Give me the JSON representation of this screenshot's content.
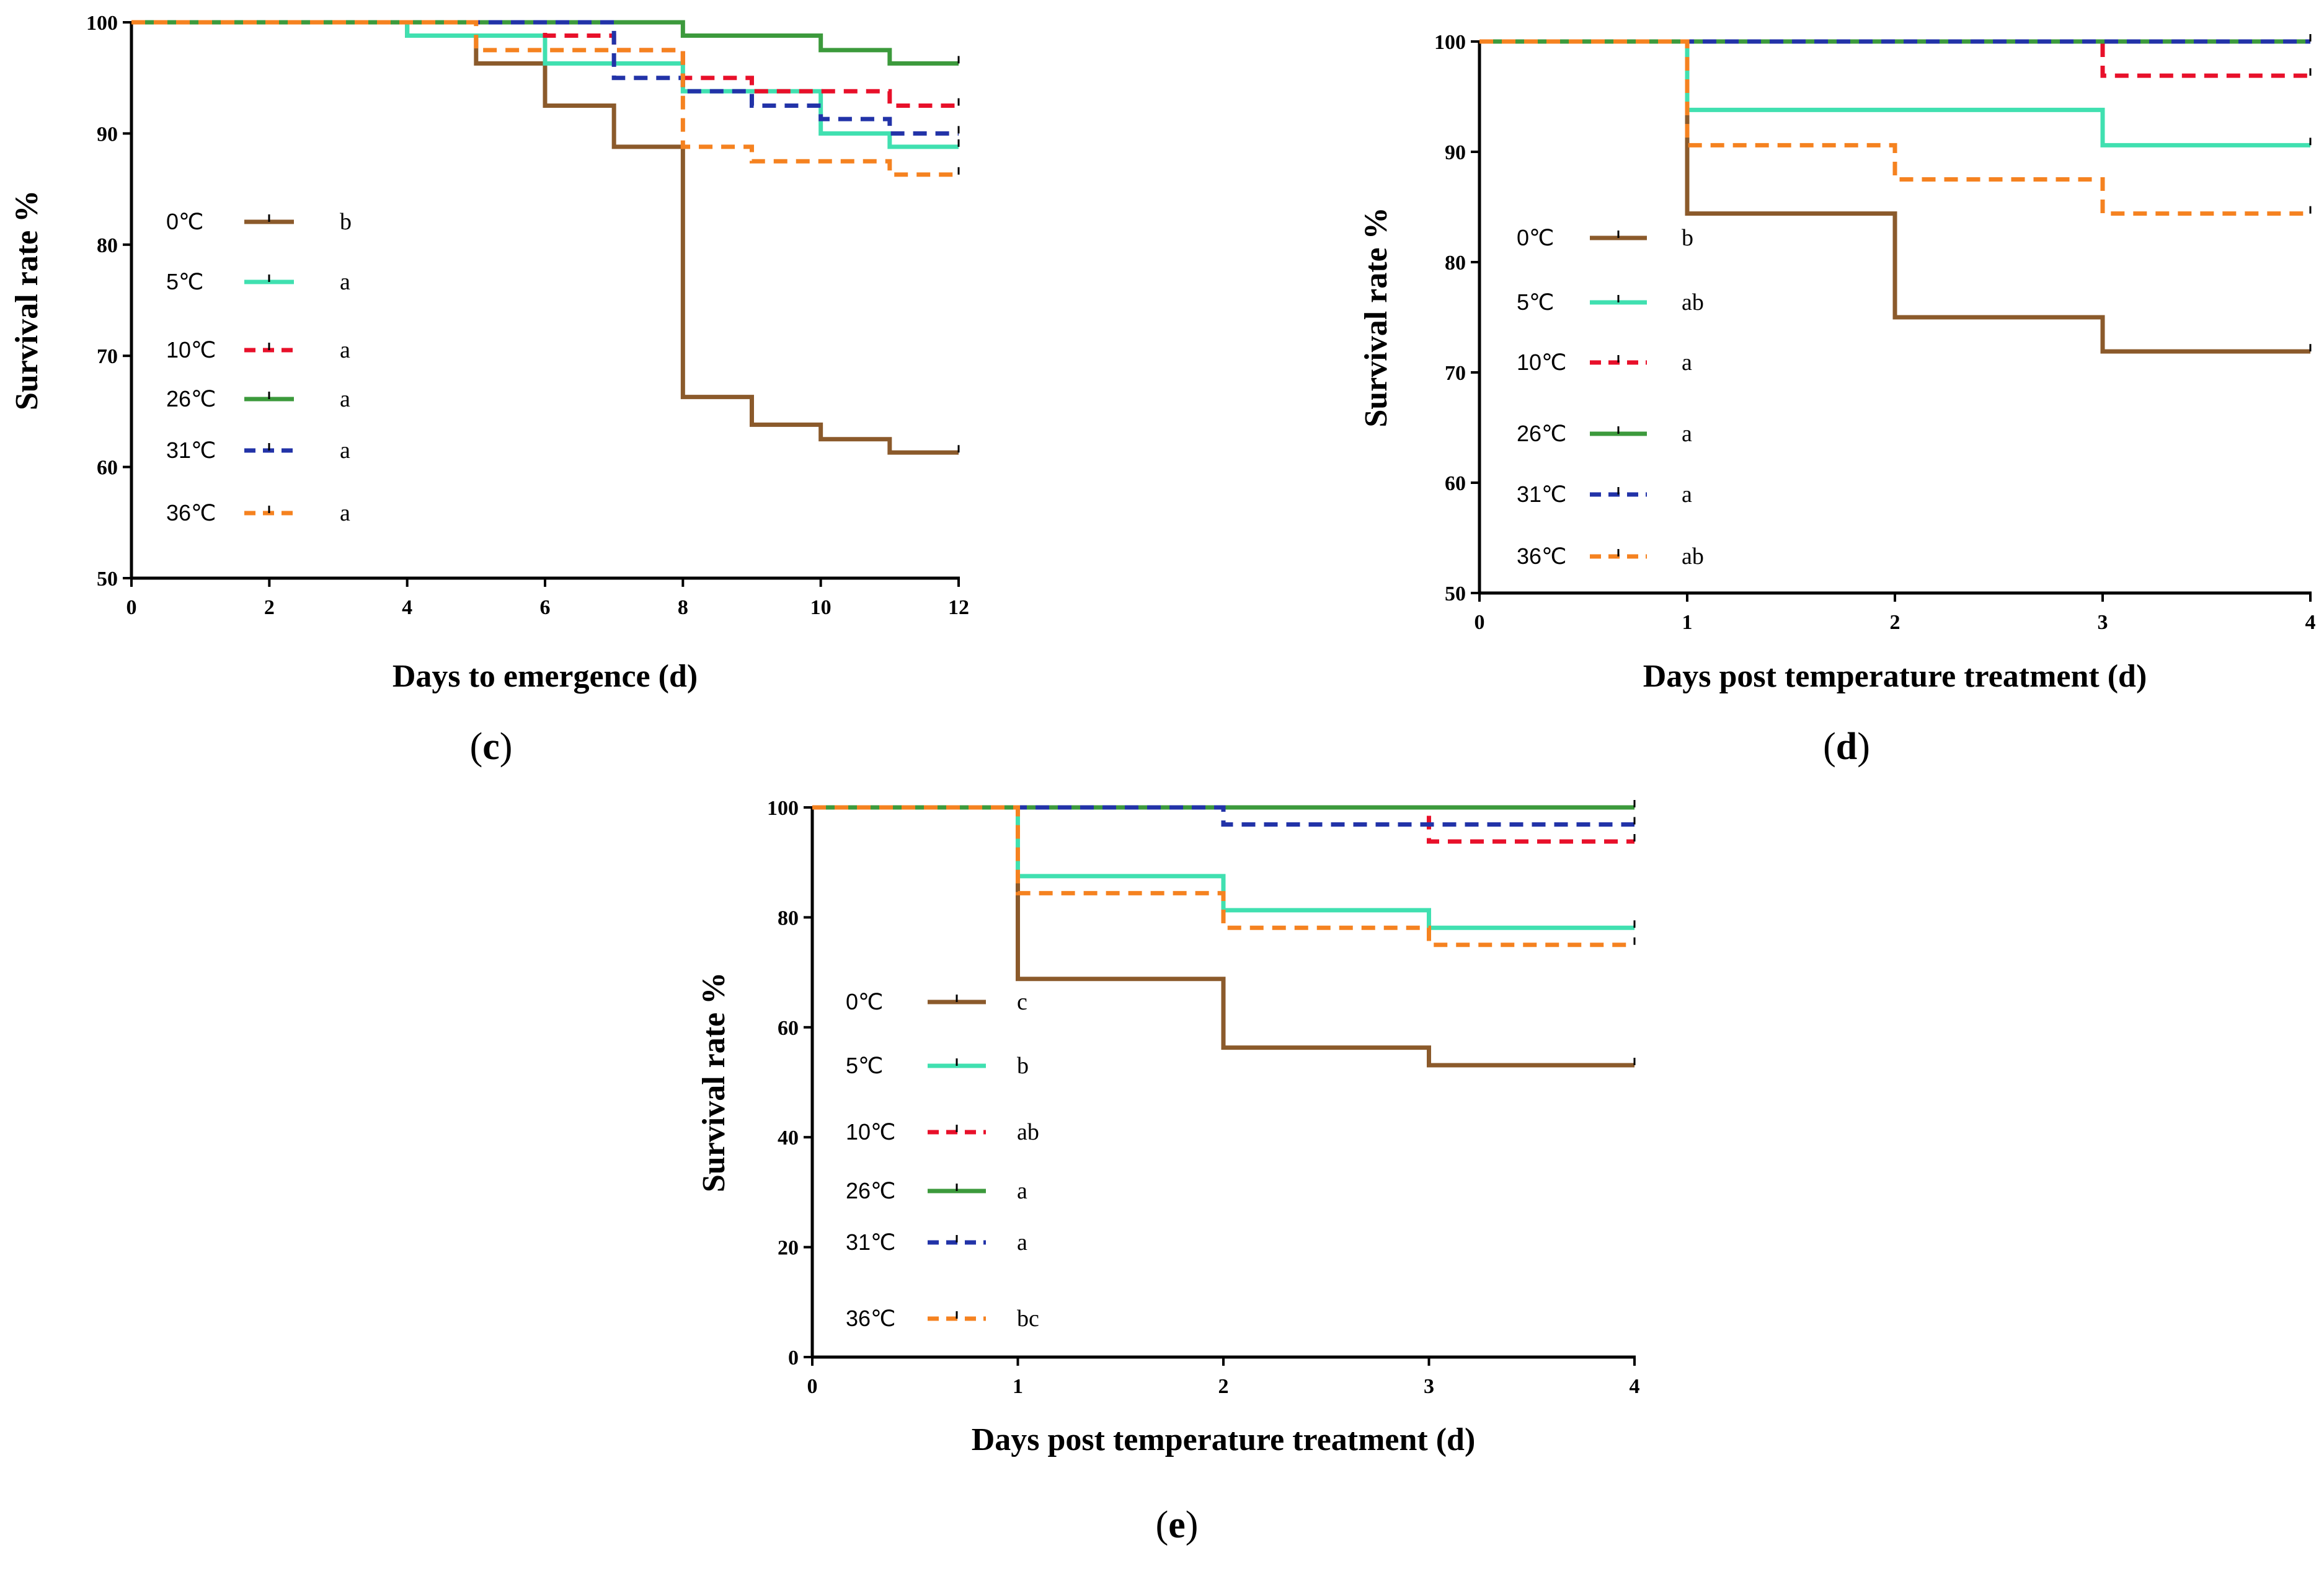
{
  "chart_data": [
    {
      "id": "c",
      "type": "line",
      "step": true,
      "panel_label": "c",
      "xlabel": "Days to emergence (d)",
      "ylabel": "Survival rate %",
      "xlim": [
        0,
        12
      ],
      "ylim": [
        50,
        100
      ],
      "xticks": [
        0,
        2,
        4,
        6,
        8,
        10,
        12
      ],
      "yticks": [
        50,
        60,
        70,
        80,
        90,
        100
      ],
      "series": [
        {
          "name": "0℃",
          "sig": "b",
          "color": "#8B5A2B",
          "dash": "solid",
          "x": [
            0,
            4,
            5,
            6,
            7,
            8,
            9,
            10,
            11,
            12
          ],
          "y": [
            100,
            98.8,
            96.3,
            92.5,
            88.8,
            66.3,
            63.8,
            62.5,
            61.3,
            61.3
          ]
        },
        {
          "name": "5℃",
          "sig": "a",
          "color": "#40E0B0",
          "dash": "solid",
          "x": [
            0,
            4,
            6,
            8,
            10,
            11,
            12
          ],
          "y": [
            100,
            98.8,
            96.3,
            93.8,
            90,
            88.8,
            88.8
          ]
        },
        {
          "name": "10℃",
          "sig": "a",
          "color": "#E8102A",
          "dash": "dashed",
          "x": [
            0,
            6,
            7,
            8,
            9,
            11,
            12
          ],
          "y": [
            100,
            98.8,
            97.5,
            95,
            93.8,
            92.5,
            92.5
          ]
        },
        {
          "name": "26℃",
          "sig": "a",
          "color": "#3C9A3C",
          "dash": "solid",
          "x": [
            0,
            8,
            10,
            11,
            12
          ],
          "y": [
            100,
            98.8,
            97.5,
            96.3,
            96.3
          ]
        },
        {
          "name": "31℃",
          "sig": "a",
          "color": "#2233A8",
          "dash": "dashed",
          "x": [
            0,
            7,
            8,
            9,
            10,
            11,
            12
          ],
          "y": [
            100,
            95,
            93.8,
            92.5,
            91.3,
            90,
            90
          ]
        },
        {
          "name": "36℃",
          "sig": "a",
          "color": "#F58220",
          "dash": "dashed",
          "x": [
            0,
            5,
            8,
            9,
            11,
            12
          ],
          "y": [
            100,
            97.5,
            88.8,
            87.5,
            86.3,
            86.3
          ]
        }
      ]
    },
    {
      "id": "d",
      "type": "line",
      "step": true,
      "panel_label": "d",
      "xlabel": "Days post temperature treatment (d)",
      "ylabel": "Survival rate %",
      "xlim": [
        0,
        4
      ],
      "ylim": [
        50,
        100
      ],
      "xticks": [
        0,
        1,
        2,
        3,
        4
      ],
      "yticks": [
        50,
        60,
        70,
        80,
        90,
        100
      ],
      "series": [
        {
          "name": "0℃",
          "sig": "b",
          "color": "#8B5A2B",
          "dash": "solid",
          "x": [
            0,
            1,
            2,
            3,
            4
          ],
          "y": [
            100,
            84.4,
            75,
            71.9,
            71.9
          ]
        },
        {
          "name": "5℃",
          "sig": "ab",
          "color": "#40E0B0",
          "dash": "solid",
          "x": [
            0,
            1,
            3,
            4
          ],
          "y": [
            100,
            93.8,
            90.6,
            90.6
          ]
        },
        {
          "name": "10℃",
          "sig": "a",
          "color": "#E8102A",
          "dash": "dashed",
          "x": [
            0,
            3,
            4
          ],
          "y": [
            100,
            96.9,
            96.9
          ]
        },
        {
          "name": "26℃",
          "sig": "a",
          "color": "#3C9A3C",
          "dash": "solid",
          "x": [
            0,
            4
          ],
          "y": [
            100,
            100
          ]
        },
        {
          "name": "31℃",
          "sig": "a",
          "color": "#2233A8",
          "dash": "dashed",
          "x": [
            0,
            4
          ],
          "y": [
            100,
            100
          ]
        },
        {
          "name": "36℃",
          "sig": "ab",
          "color": "#F58220",
          "dash": "dashed",
          "x": [
            0,
            1,
            2,
            3,
            4
          ],
          "y": [
            100,
            90.6,
            87.5,
            84.4,
            84.4
          ]
        }
      ]
    },
    {
      "id": "e",
      "type": "line",
      "step": true,
      "panel_label": "e",
      "xlabel": "Days post temperature treatment  (d)",
      "ylabel": "Survival rate %",
      "xlim": [
        0,
        4
      ],
      "ylim": [
        0,
        100
      ],
      "xticks": [
        0,
        1,
        2,
        3,
        4
      ],
      "yticks": [
        0,
        20,
        40,
        60,
        80,
        100
      ],
      "series": [
        {
          "name": "0℃",
          "sig": "c",
          "color": "#8B5A2B",
          "dash": "solid",
          "x": [
            0,
            1,
            2,
            3,
            4
          ],
          "y": [
            100,
            68.8,
            56.3,
            53.1,
            53.1
          ]
        },
        {
          "name": "5℃",
          "sig": "b",
          "color": "#40E0B0",
          "dash": "solid",
          "x": [
            0,
            1,
            2,
            3,
            4
          ],
          "y": [
            100,
            87.5,
            81.3,
            78.1,
            78.1
          ]
        },
        {
          "name": "10℃",
          "sig": "ab",
          "color": "#E8102A",
          "dash": "dashed",
          "x": [
            0,
            3,
            4
          ],
          "y": [
            100,
            93.8,
            93.8
          ]
        },
        {
          "name": "26℃",
          "sig": "a",
          "color": "#3C9A3C",
          "dash": "solid",
          "x": [
            0,
            4
          ],
          "y": [
            100,
            100
          ]
        },
        {
          "name": "31℃",
          "sig": "a",
          "color": "#2233A8",
          "dash": "dashed",
          "x": [
            0,
            2,
            4
          ],
          "y": [
            100,
            96.9,
            96.9
          ]
        },
        {
          "name": "36℃",
          "sig": "bc",
          "color": "#F58220",
          "dash": "dashed",
          "x": [
            0,
            1,
            2,
            3,
            4
          ],
          "y": [
            100,
            84.4,
            78.1,
            75,
            75
          ]
        }
      ]
    }
  ]
}
